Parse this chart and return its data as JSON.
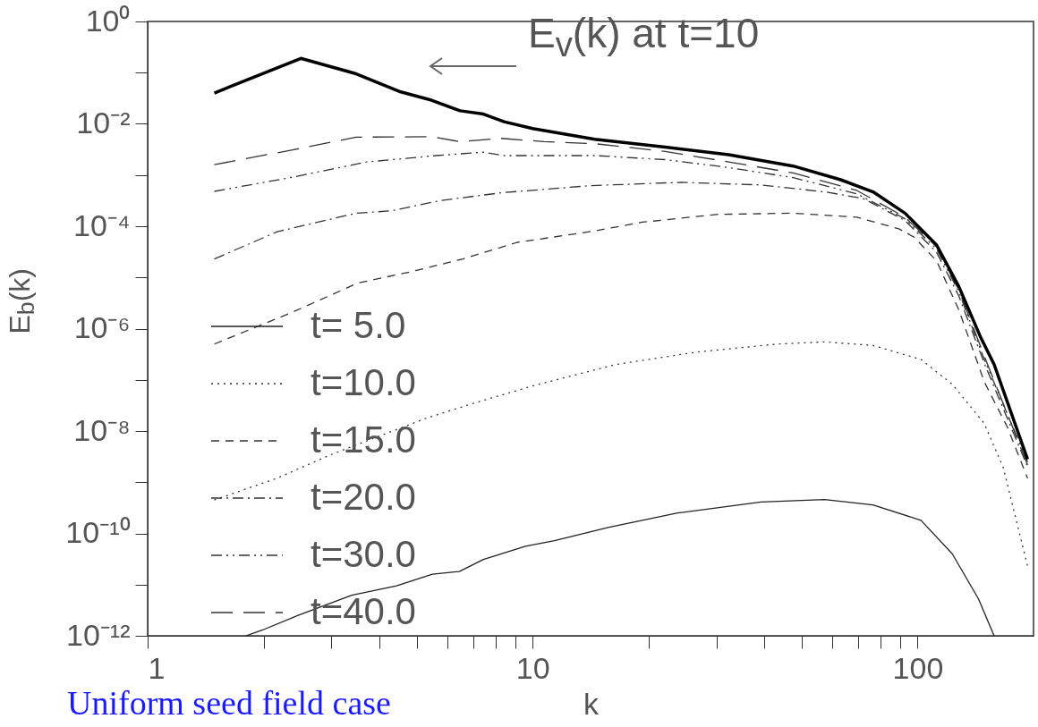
{
  "chart_data": {
    "type": "line",
    "xlabel": "k",
    "ylabel": "E$_{b}$(k)",
    "log": "xy",
    "grid": false,
    "legend": "bottom left",
    "xlim": [
      1,
      200
    ],
    "ylim": [
      1e-12,
      1
    ],
    "xticks": [
      1,
      {
        "value": 2,
        "label": null
      },
      {
        "value": 3,
        "label": null
      },
      {
        "value": 4,
        "label": null
      },
      {
        "value": 5,
        "label": null
      },
      {
        "value": 6,
        "label": null
      },
      {
        "value": 7,
        "label": null
      },
      {
        "value": 8,
        "label": null
      },
      {
        "value": 9,
        "label": null
      },
      10,
      {
        "value": 20,
        "label": null
      },
      {
        "value": 30,
        "label": null
      },
      {
        "value": 40,
        "label": null
      },
      {
        "value": 50,
        "label": null
      },
      {
        "value": 60,
        "label": null
      },
      {
        "value": 70,
        "label": null
      },
      {
        "value": 80,
        "label": null
      },
      {
        "value": 90,
        "label": null
      },
      100
    ],
    "yticks": [
      {
        "value": 1e-12,
        "label": "10⁻¹²"
      },
      {
        "value": 1e-11,
        "label": null
      },
      {
        "value": 1e-10,
        "label": "10⁻¹⁰"
      },
      {
        "value": 1e-09,
        "label": null
      },
      {
        "value": 1e-08,
        "label": "10⁻⁸"
      },
      {
        "value": 1e-07,
        "label": null
      },
      {
        "value": 1e-06,
        "label": "10⁻⁶"
      },
      {
        "value": 1e-05,
        "label": null
      },
      {
        "value": 0.0001,
        "label": "10⁻⁴"
      },
      {
        "value": 0.001,
        "label": null
      },
      {
        "value": 0.01,
        "label": "10⁻²"
      },
      {
        "value": 0.1,
        "label": null
      },
      {
        "value": 1,
        "label": "10⁰"
      }
    ],
    "annotations": [
      "E$_{v}$(k) at t=10",
      "Uniform seed field case"
    ],
    "series": [
      {
        "name": "t=  5.0",
        "color": "#222222",
        "line_style": "solid",
        "x": [
          1.8,
          1.99,
          2.46,
          3.39,
          4.43,
          5.49,
          6.45,
          7.45,
          9.58,
          11.4,
          15.7,
          23.8,
          39.2,
          57.3,
          76.5,
          102,
          123,
          144,
          158
        ],
        "values": [
          1e-12,
          1.3e-12,
          2.5e-12,
          6.2e-12,
          9.5e-12,
          1.6e-11,
          1.8e-11,
          3.1e-11,
          5.6e-11,
          7.2e-11,
          1.3e-10,
          2.5e-10,
          4.1e-10,
          4.6e-10,
          3.6e-10,
          1.8e-10,
          4e-11,
          5.2e-12,
          1e-12
        ]
      },
      {
        "name": "t=10.0",
        "color": "#333333",
        "line_style": "dotted",
        "x": [
          1.49,
          2.17,
          2.95,
          4.2,
          5.32,
          6.95,
          10,
          16.5,
          26.8,
          43.2,
          57.3,
          76.5,
          102,
          123,
          149,
          167,
          193
        ],
        "values": [
          4.5e-10,
          1.2e-09,
          3.3e-09,
          9.2e-09,
          1.8e-08,
          3.4e-08,
          7.6e-08,
          2e-07,
          3.5e-07,
          5e-07,
          5.5e-07,
          4.7e-07,
          2.5e-07,
          8.2e-08,
          1.4e-08,
          1.9e-09,
          2.3e-11
        ]
      },
      {
        "name": "t=15.0",
        "color": "#333333",
        "line_style": "dashed",
        "x": [
          1.49,
          2.38,
          3.52,
          4.85,
          6.59,
          9.08,
          14.5,
          19.3,
          30,
          47.5,
          69.5,
          89.4,
          98,
          112,
          128,
          149,
          171,
          193
        ],
        "values": [
          5e-07,
          2.1e-06,
          7.8e-06,
          1.3e-05,
          2.3e-05,
          4.8e-05,
          8.1e-05,
          0.00012,
          0.00017,
          0.00018,
          0.00015,
          8.9e-05,
          6.1e-05,
          2.1e-05,
          2.3e-06,
          9.1e-08,
          1.2e-08,
          1.2e-09
        ]
      },
      {
        "name": "t=20.0",
        "color": "#333333",
        "line_style": "dashdot",
        "x": [
          1.49,
          2.17,
          3.48,
          4.29,
          5.79,
          8.29,
          14.1,
          24.3,
          39.2,
          57.3,
          72.1,
          92.7,
          112,
          128,
          149,
          193
        ],
        "values": [
          2.3e-05,
          7.8e-05,
          0.00018,
          0.0002,
          0.00032,
          0.00045,
          0.00062,
          0.00072,
          0.00064,
          0.00047,
          0.00035,
          0.00013,
          3.1e-05,
          4.3e-06,
          2.1e-07,
          2e-09
        ]
      },
      {
        "name": "t=30.0",
        "color": "#333333",
        "line_style": "dashdotdot",
        "x": [
          1.49,
          2.38,
          3.71,
          5.61,
          7.45,
          8.43,
          14.5,
          22.1,
          32.3,
          47.5,
          69.5,
          92.7,
          112,
          128,
          149,
          193
        ],
        "values": [
          0.00048,
          0.00091,
          0.0018,
          0.0024,
          0.0028,
          0.0024,
          0.0024,
          0.002,
          0.0014,
          0.00089,
          0.00043,
          0.00014,
          3.6e-05,
          5.2e-06,
          2.5e-07,
          2.5e-09
        ]
      },
      {
        "name": "t=40.0",
        "color": "#333333",
        "line_style": "longdash",
        "x": [
          1.49,
          2.38,
          3.48,
          5.49,
          6.45,
          8.29,
          10.7,
          14.5,
          22.1,
          32.3,
          47.5,
          69.5,
          92.7,
          112,
          128,
          149,
          193
        ],
        "values": [
          0.0016,
          0.0031,
          0.0055,
          0.0056,
          0.0045,
          0.0052,
          0.0045,
          0.0041,
          0.0029,
          0.0018,
          0.0011,
          0.0005,
          0.00015,
          4e-05,
          5.6e-06,
          2.9e-07,
          2.2e-09
        ]
      },
      {
        "color": "#000000",
        "line_style": "solid",
        "x": [
          1.49,
          2.5,
          3.48,
          4.5,
          5.46,
          6.48,
          7.45,
          8.43,
          10,
          14.5,
          22.1,
          32.3,
          47.5,
          63.1,
          76.6,
          92.7,
          112,
          128,
          146,
          158,
          193
        ],
        "values": [
          0.04,
          0.19,
          0.095,
          0.043,
          0.029,
          0.018,
          0.0155,
          0.011,
          0.0081,
          0.005,
          0.0035,
          0.0025,
          0.0015,
          0.00081,
          0.00047,
          0.00018,
          4.3e-05,
          6.6e-06,
          6.6e-07,
          2e-07,
          2.8e-09
        ]
      }
    ]
  }
}
